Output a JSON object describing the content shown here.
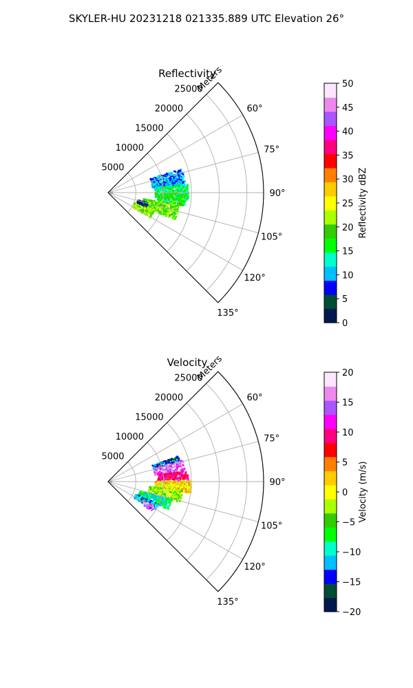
{
  "figure": {
    "title": "SKYLER-HU  20231218  021335.889 UTC Elevation 26°"
  },
  "chart_data": [
    {
      "type": "polar-sector",
      "title": "Reflectivity",
      "radial_label": "Meters",
      "radial_ticks": [
        5000,
        10000,
        15000,
        20000,
        25000
      ],
      "radial_tick_labels": [
        "5000",
        "10000",
        "15000",
        "20000",
        "25000"
      ],
      "rmax": 28000,
      "theta_range_deg": [
        45,
        135
      ],
      "theta_ticks_deg": [
        60,
        75,
        90,
        105,
        120,
        135
      ],
      "theta_tick_labels": [
        "60°",
        "75°",
        "90°",
        "105°",
        "120°",
        "135°"
      ],
      "grid": true,
      "colorbar": {
        "label": "Reflectivity dBZ",
        "vmin": 0,
        "vmax": 50,
        "ticks": [
          0,
          5,
          10,
          15,
          20,
          25,
          30,
          35,
          40,
          45,
          50
        ],
        "tick_labels": [
          "0",
          "5",
          "10",
          "15",
          "20",
          "25",
          "30",
          "35",
          "40",
          "45",
          "50"
        ],
        "stops": [
          "#001a4d",
          "#004d33",
          "#0000ff",
          "#00bfff",
          "#00ffcc",
          "#00ff00",
          "#33cc00",
          "#aaff00",
          "#ffff00",
          "#ffcc00",
          "#ff8000",
          "#ff0000",
          "#ff0080",
          "#ff00ff",
          "#aa55ff",
          "#ee88ee",
          "#ffe6ff"
        ]
      },
      "regions": [
        {
          "az": [
            72,
            84
          ],
          "r": [
            8000,
            14000
          ],
          "value": 10
        },
        {
          "az": [
            84,
            96
          ],
          "r": [
            8500,
            14500
          ],
          "value": 15
        },
        {
          "az": [
            90,
            100
          ],
          "r": [
            9000,
            14000
          ],
          "value": 17
        },
        {
          "az": [
            100,
            112
          ],
          "r": [
            6500,
            13000
          ],
          "value": 20
        },
        {
          "az": [
            110,
            121
          ],
          "r": [
            5000,
            9000
          ],
          "value": 21
        },
        {
          "az": [
            104,
            110
          ],
          "r": [
            5500,
            7500
          ],
          "value": 4
        },
        {
          "az": [
            85,
            95
          ],
          "r": [
            200,
            1200
          ],
          "value": 8
        }
      ]
    },
    {
      "type": "polar-sector",
      "title": "Velocity",
      "radial_label": "Meters",
      "radial_ticks": [
        5000,
        10000,
        15000,
        20000,
        25000
      ],
      "radial_tick_labels": [
        "5000",
        "10000",
        "15000",
        "20000",
        "25000"
      ],
      "rmax": 28000,
      "theta_range_deg": [
        45,
        135
      ],
      "theta_ticks_deg": [
        60,
        75,
        90,
        105,
        120,
        135
      ],
      "theta_tick_labels": [
        "60°",
        "75°",
        "90°",
        "105°",
        "120°",
        "135°"
      ],
      "grid": true,
      "colorbar": {
        "label": "Velocity (m/s)",
        "vmin": -20,
        "vmax": 20,
        "ticks": [
          -20,
          -15,
          -10,
          -5,
          0,
          5,
          10,
          15,
          20
        ],
        "tick_labels": [
          "−20",
          "−15",
          "−10",
          "−5",
          "0",
          "5",
          "10",
          "15",
          "20"
        ],
        "stops": [
          "#001a4d",
          "#004d33",
          "#0000ff",
          "#00bfff",
          "#00ffcc",
          "#00ff00",
          "#33cc00",
          "#aaff00",
          "#ffff00",
          "#ffcc00",
          "#ff8000",
          "#ff0000",
          "#ff0080",
          "#ff00ff",
          "#aa55ff",
          "#ee88ee",
          "#ffe6ff"
        ]
      },
      "regions": [
        {
          "az": [
            70,
            76
          ],
          "r": [
            8500,
            13500
          ],
          "value": -14
        },
        {
          "az": [
            74,
            82
          ],
          "r": [
            8500,
            14000
          ],
          "value": 15
        },
        {
          "az": [
            82,
            90
          ],
          "r": [
            9000,
            14500
          ],
          "value": 10
        },
        {
          "az": [
            89,
            98
          ],
          "r": [
            8500,
            15000
          ],
          "value": 1
        },
        {
          "az": [
            97,
            106
          ],
          "r": [
            7500,
            13500
          ],
          "value": -3
        },
        {
          "az": [
            106,
            115
          ],
          "r": [
            6000,
            12000
          ],
          "value": -9
        },
        {
          "az": [
            114,
            122
          ],
          "r": [
            5500,
            10000
          ],
          "value": -12
        },
        {
          "az": [
            118,
            124
          ],
          "r": [
            7500,
            9500
          ],
          "value": 15
        },
        {
          "az": [
            88,
            94
          ],
          "r": [
            200,
            1200
          ],
          "value": 6
        }
      ]
    }
  ]
}
